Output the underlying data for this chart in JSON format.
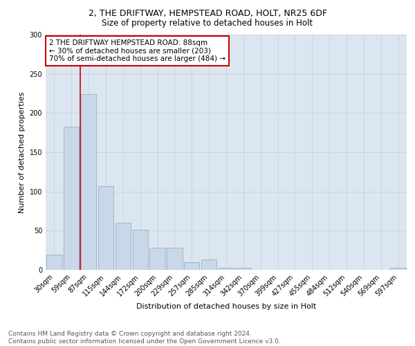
{
  "title1": "2, THE DRIFTWAY, HEMPSTEAD ROAD, HOLT, NR25 6DF",
  "title2": "Size of property relative to detached houses in Holt",
  "xlabel": "Distribution of detached houses by size in Holt",
  "ylabel": "Number of detached properties",
  "categories": [
    "30sqm",
    "59sqm",
    "87sqm",
    "115sqm",
    "144sqm",
    "172sqm",
    "200sqm",
    "229sqm",
    "257sqm",
    "285sqm",
    "314sqm",
    "342sqm",
    "370sqm",
    "399sqm",
    "427sqm",
    "455sqm",
    "484sqm",
    "512sqm",
    "540sqm",
    "569sqm",
    "597sqm"
  ],
  "values": [
    19,
    183,
    224,
    107,
    60,
    51,
    28,
    28,
    10,
    13,
    3,
    3,
    0,
    0,
    0,
    0,
    0,
    0,
    0,
    0,
    3
  ],
  "bar_color": "#c8d8e8",
  "bar_edge_color": "#9ab0c4",
  "vline_x": 1.5,
  "vline_color": "#cc0000",
  "annotation_text": "2 THE DRIFTWAY HEMPSTEAD ROAD: 88sqm\n← 30% of detached houses are smaller (203)\n70% of semi-detached houses are larger (484) →",
  "annotation_box_color": "#ffffff",
  "annotation_box_edge": "#cc0000",
  "ylim": [
    0,
    300
  ],
  "yticks": [
    0,
    50,
    100,
    150,
    200,
    250,
    300
  ],
  "grid_color": "#c8d4e4",
  "background_color": "#dce6f0",
  "footnote": "Contains HM Land Registry data © Crown copyright and database right 2024.\nContains public sector information licensed under the Open Government Licence v3.0.",
  "title1_fontsize": 9,
  "title2_fontsize": 8.5,
  "xlabel_fontsize": 8,
  "ylabel_fontsize": 8,
  "tick_fontsize": 7,
  "annotation_fontsize": 7.5,
  "footnote_fontsize": 6.5
}
